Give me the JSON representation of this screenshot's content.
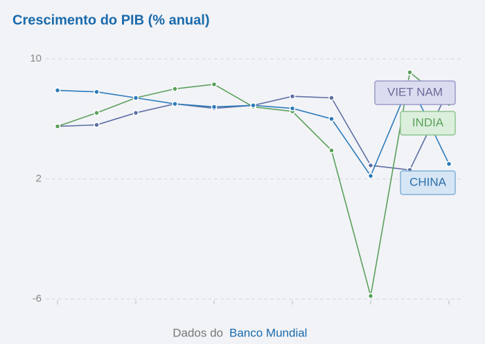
{
  "chart_data": {
    "type": "line",
    "title": "Crescimento do PIB (% anual)",
    "categories": [
      null,
      null,
      null,
      null,
      null,
      null,
      null,
      null,
      null,
      null,
      null
    ],
    "series": [
      {
        "name": "VIET NAM",
        "color": "#5d6fa3",
        "values": [
          5.5,
          5.6,
          6.4,
          7.0,
          6.7,
          6.9,
          7.5,
          7.4,
          2.9,
          2.6,
          8.0
        ]
      },
      {
        "name": "INDIA",
        "color": "#5aa05a",
        "values": [
          5.5,
          6.4,
          7.4,
          8.0,
          8.3,
          6.8,
          6.5,
          3.9,
          -5.8,
          9.1,
          7.0
        ]
      },
      {
        "name": "CHINA",
        "color": "#2b7bba",
        "values": [
          7.9,
          7.8,
          7.4,
          7.0,
          6.8,
          6.9,
          6.7,
          6.0,
          2.2,
          8.4,
          3.0
        ]
      }
    ],
    "ylim": [
      -6,
      10
    ],
    "yticks": [
      10,
      2,
      -6
    ],
    "grid": true,
    "source_prefix": "Dados do",
    "source_link": "Banco Mundial"
  }
}
